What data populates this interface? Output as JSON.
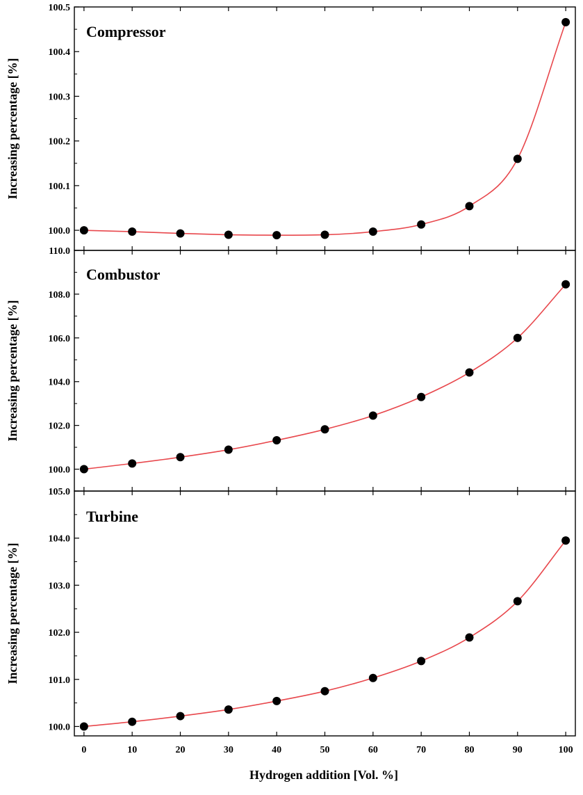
{
  "chart_data": [
    {
      "type": "line",
      "title": "Compressor",
      "ylabel": "Increasing percentage [%]",
      "xlabel": "Hydrogen addition [Vol. %]",
      "x": [
        0,
        10,
        20,
        30,
        40,
        50,
        60,
        70,
        80,
        90,
        100
      ],
      "series": [
        {
          "values": [
            100.0,
            99.997,
            99.993,
            99.99,
            99.989,
            99.99,
            99.997,
            100.013,
            100.054,
            100.16,
            100.466
          ]
        }
      ],
      "xlim": [
        -2,
        102
      ],
      "ylim": [
        99.955,
        100.5
      ],
      "yticks": [
        100.0,
        100.1,
        100.2,
        100.3,
        100.4,
        100.5
      ],
      "ytick_labels": [
        "100.0",
        "100.1",
        "100.2",
        "100.3",
        "100.4",
        "100.5"
      ],
      "line_color": "#e8474c",
      "marker_color": "#000000"
    },
    {
      "type": "line",
      "title": "Combustor",
      "ylabel": "Increasing percentage [%]",
      "xlabel": "Hydrogen addition [Vol. %]",
      "x": [
        0,
        10,
        20,
        30,
        40,
        50,
        60,
        70,
        80,
        90,
        100
      ],
      "series": [
        {
          "values": [
            100.0,
            100.26,
            100.55,
            100.89,
            101.32,
            101.82,
            102.45,
            103.3,
            104.42,
            106.0,
            108.45
          ]
        }
      ],
      "xlim": [
        -2,
        102
      ],
      "ylim": [
        99.0,
        110.0
      ],
      "yticks": [
        100.0,
        102.0,
        104.0,
        106.0,
        108.0,
        110.0
      ],
      "ytick_labels": [
        "100.0",
        "102.0",
        "104.0",
        "106.0",
        "108.0",
        "110.0"
      ],
      "line_color": "#e8474c",
      "marker_color": "#000000"
    },
    {
      "type": "line",
      "title": "Turbine",
      "ylabel": "Increasing percentage [%]",
      "xlabel": "Hydrogen addition [Vol. %]",
      "x": [
        0,
        10,
        20,
        30,
        40,
        50,
        60,
        70,
        80,
        90,
        100
      ],
      "series": [
        {
          "values": [
            100.0,
            100.1,
            100.22,
            100.36,
            100.54,
            100.75,
            101.03,
            101.39,
            101.89,
            102.66,
            103.95
          ]
        }
      ],
      "xlim": [
        -2,
        102
      ],
      "ylim": [
        99.8,
        105.0
      ],
      "yticks": [
        100.0,
        101.0,
        102.0,
        103.0,
        104.0,
        105.0
      ],
      "ytick_labels": [
        "100.0",
        "101.0",
        "102.0",
        "103.0",
        "104.0",
        "105.0"
      ],
      "xticks": [
        0,
        10,
        20,
        30,
        40,
        50,
        60,
        70,
        80,
        90,
        100
      ],
      "xtick_labels": [
        "0",
        "10",
        "20",
        "30",
        "40",
        "50",
        "60",
        "70",
        "80",
        "90",
        "100"
      ],
      "line_color": "#e8474c",
      "marker_color": "#000000"
    }
  ],
  "shared": {
    "xlabel": "Hydrogen addition [Vol. %]"
  }
}
